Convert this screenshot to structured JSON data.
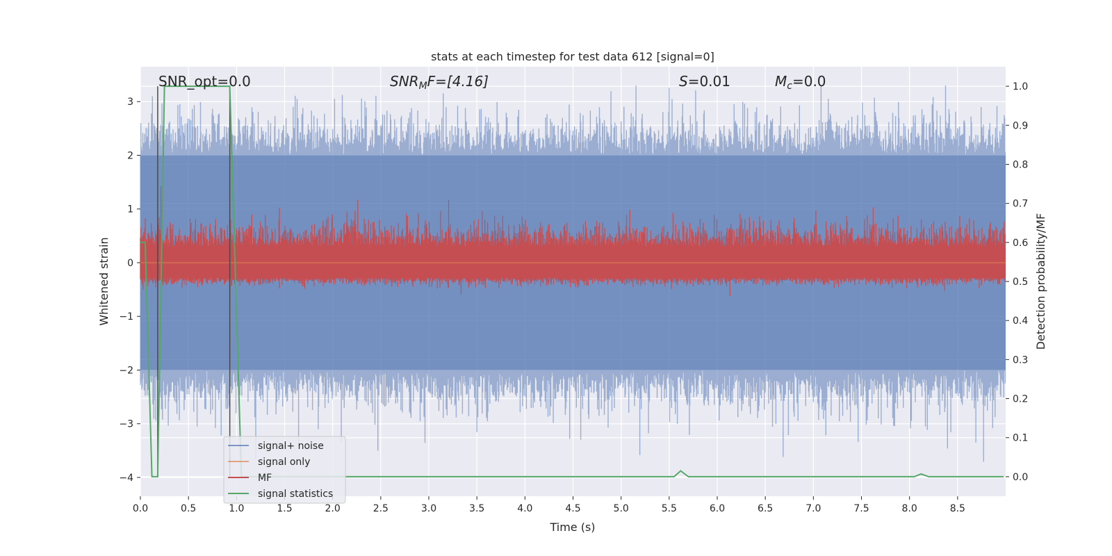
{
  "chart_data": {
    "type": "line",
    "title": "stats at each timestep for test data 612 [signal=0]",
    "xlabel": "Time (s)",
    "ylabel": "Whitened strain",
    "ylabel_right": "Detection probability/MF",
    "xlim": [
      0.0,
      9.0
    ],
    "ylim": [
      -4.35,
      3.65
    ],
    "ylim_right": [
      -0.05,
      1.05
    ],
    "grid": true,
    "background": "#eaeaf2",
    "x_ticks": [
      "0.0",
      "0.5",
      "1.0",
      "1.5",
      "2.0",
      "2.5",
      "3.0",
      "3.5",
      "4.0",
      "4.5",
      "5.0",
      "5.5",
      "6.0",
      "6.5",
      "7.0",
      "7.5",
      "8.0",
      "8.5"
    ],
    "x_tick_values": [
      0.0,
      0.5,
      1.0,
      1.5,
      2.0,
      2.5,
      3.0,
      3.5,
      4.0,
      4.5,
      5.0,
      5.5,
      6.0,
      6.5,
      7.0,
      7.5,
      8.0,
      8.5
    ],
    "y_ticks": [
      "3",
      "2",
      "1",
      "0",
      "−1",
      "−2",
      "−3",
      "−4"
    ],
    "y_tick_values": [
      3,
      2,
      1,
      0,
      -1,
      -2,
      -3,
      -4
    ],
    "y_right_ticks": [
      "1.0",
      "0.9",
      "0.8",
      "0.7",
      "0.6",
      "0.5",
      "0.4",
      "0.3",
      "0.2",
      "0.1",
      "0.0"
    ],
    "y_right_tick_values": [
      1.0,
      0.9,
      0.8,
      0.7,
      0.6,
      0.5,
      0.4,
      0.3,
      0.2,
      0.1,
      0.0
    ],
    "annotations": {
      "snr_opt": "SNR_opt=0.0",
      "snr_mf_main": "SNR",
      "snr_mf_sub": "M",
      "snr_mf_rest": "F=[4.16]",
      "s_main": "S",
      "s_rest": "=0.01",
      "mc_main": "M",
      "mc_sub": "c",
      "mc_rest": "=0.0"
    },
    "legend": {
      "placement": "lower-left",
      "entries": [
        {
          "label": "signal+ noise",
          "color": "#4c72b0"
        },
        {
          "label": "signal only",
          "color": "#dd8452"
        },
        {
          "label": "MF",
          "color": "#c44e52"
        },
        {
          "label": "signal statistics",
          "color": "#55a868"
        }
      ]
    },
    "series": [
      {
        "name": "signal+ noise",
        "color": "#4c72b0",
        "axis": "left",
        "style": "dense noise, amplitude ±2 typical, peaks to ±3.3",
        "envelope_low": -2.0,
        "envelope_high": 2.0
      },
      {
        "name": "signal only",
        "color": "#dd8452",
        "axis": "left",
        "values_constant": 0.0
      },
      {
        "name": "MF",
        "color": "#c44e52",
        "axis": "right",
        "baseline": 0.55,
        "typical_max": 0.65
      },
      {
        "name": "signal statistics",
        "color": "#55a868",
        "axis": "right",
        "x": [
          0.0,
          0.05,
          0.12,
          0.18,
          0.25,
          0.27,
          0.93,
          1.05,
          1.2,
          5.55,
          5.62,
          5.7,
          8.05,
          8.12,
          8.2,
          8.98
        ],
        "y": [
          0.6,
          0.6,
          0.0,
          0.0,
          1.0,
          1.0,
          1.0,
          0.0,
          0.0,
          0.0,
          0.015,
          0.0,
          0.0,
          0.007,
          0.0,
          0.0
        ]
      }
    ],
    "vertical_lines": [
      {
        "x": 0.18,
        "color": "#4a4a4a"
      },
      {
        "x": 0.93,
        "color": "#4a4a4a"
      }
    ]
  }
}
